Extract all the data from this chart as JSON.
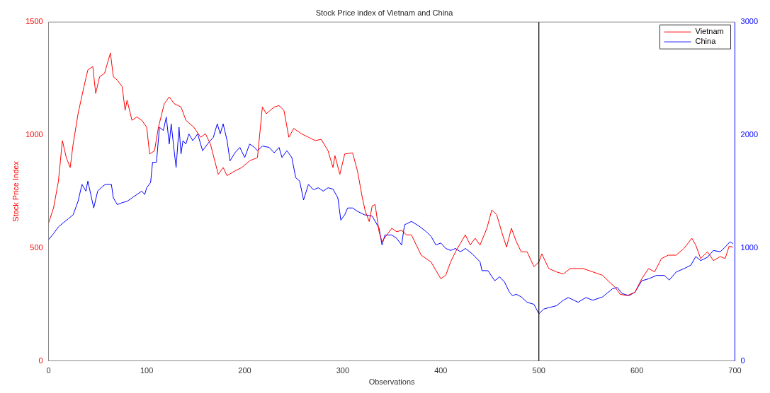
{
  "chart_data": {
    "type": "line",
    "title": "Stock Price index of Vietnam and China",
    "xlabel": "Observations",
    "ylabel": "Stock Price Index",
    "xlim": [
      0,
      700
    ],
    "xticks": [
      0,
      100,
      200,
      300,
      400,
      500,
      600,
      700
    ],
    "ylim": [
      0,
      1500
    ],
    "yticks": [
      0,
      500,
      1000,
      1500
    ],
    "y2lim": [
      0,
      3000
    ],
    "y2ticks": [
      0,
      1000,
      2000,
      3000
    ],
    "grid": false,
    "legend": "top right",
    "marker": "none",
    "line_style": "solid",
    "ref_lines": [
      {
        "axis": "x",
        "value": 500,
        "color": "#000000"
      }
    ],
    "series": [
      {
        "name": "Vietnam",
        "color": "#ff0000",
        "x": [
          0,
          5,
          10,
          14,
          18,
          22,
          25,
          30,
          33,
          36,
          40,
          45,
          48,
          52,
          57,
          63,
          66,
          70,
          75,
          78,
          80,
          85,
          90,
          95,
          100,
          103,
          108,
          112,
          118,
          123,
          128,
          135,
          140,
          148,
          155,
          160,
          165,
          173,
          178,
          182,
          190,
          197,
          205,
          213,
          218,
          222,
          230,
          235,
          240,
          245,
          250,
          258,
          265,
          272,
          278,
          285,
          290,
          292,
          297,
          302,
          310,
          315,
          320,
          323,
          327,
          330,
          333,
          337,
          340,
          345,
          350,
          355,
          360,
          365,
          370,
          380,
          390,
          400,
          405,
          410,
          415,
          425,
          430,
          435,
          440,
          447,
          452,
          457,
          462,
          467,
          472,
          477,
          482,
          488,
          495,
          500,
          503,
          510,
          518,
          525,
          532,
          545,
          555,
          565,
          572,
          578,
          583,
          590,
          598,
          605,
          612,
          618,
          625,
          632,
          640,
          648,
          656,
          660,
          665,
          672,
          678,
          685,
          690,
          694,
          698
        ],
        "values": [
          611,
          677,
          796,
          975,
          900,
          856,
          960,
          1094,
          1154,
          1214,
          1288,
          1303,
          1184,
          1258,
          1273,
          1363,
          1258,
          1243,
          1214,
          1109,
          1154,
          1065,
          1080,
          1065,
          1035,
          916,
          930,
          1035,
          1139,
          1169,
          1139,
          1124,
          1065,
          1035,
          990,
          1005,
          960,
          826,
          856,
          820,
          841,
          856,
          886,
          900,
          1124,
          1094,
          1124,
          1130,
          1109,
          990,
          1029,
          1005,
          990,
          975,
          981,
          930,
          856,
          909,
          826,
          916,
          921,
          841,
          721,
          662,
          617,
          686,
          692,
          572,
          528,
          558,
          587,
          572,
          578,
          558,
          558,
          468,
          438,
          364,
          379,
          438,
          483,
          558,
          513,
          543,
          513,
          587,
          668,
          647,
          572,
          504,
          587,
          528,
          483,
          483,
          417,
          438,
          474,
          409,
          394,
          385,
          409,
          409,
          394,
          379,
          349,
          325,
          295,
          289,
          304,
          364,
          409,
          394,
          453,
          468,
          468,
          498,
          543,
          513,
          453,
          483,
          444,
          462,
          453,
          507,
          504
        ]
      },
      {
        "name": "China",
        "color": "#0000ff",
        "axis": "y2",
        "x": [
          0,
          5,
          10,
          15,
          20,
          25,
          30,
          34,
          38,
          40,
          43,
          46,
          50,
          55,
          58,
          64,
          66,
          70,
          75,
          80,
          85,
          90,
          95,
          98,
          100,
          104,
          106,
          110,
          113,
          117,
          120,
          123,
          125,
          128,
          130,
          133,
          135,
          137,
          140,
          143,
          147,
          152,
          157,
          162,
          168,
          172,
          175,
          178,
          182,
          185,
          190,
          195,
          200,
          205,
          210,
          213,
          218,
          225,
          230,
          235,
          238,
          243,
          248,
          252,
          256,
          260,
          265,
          270,
          275,
          280,
          285,
          290,
          295,
          298,
          302,
          305,
          310,
          315,
          322,
          330,
          337,
          340,
          343,
          350,
          355,
          360,
          363,
          370,
          378,
          385,
          390,
          395,
          400,
          405,
          410,
          415,
          420,
          425,
          432,
          440,
          442,
          448,
          455,
          460,
          465,
          470,
          473,
          477,
          482,
          488,
          495,
          500,
          505,
          510,
          518,
          525,
          530,
          540,
          548,
          555,
          565,
          575,
          580,
          585,
          592,
          598,
          605,
          612,
          620,
          628,
          633,
          640,
          648,
          655,
          660,
          665,
          672,
          678,
          685,
          690,
          695,
          698
        ],
        "values": [
          1074,
          1127,
          1187,
          1223,
          1258,
          1294,
          1413,
          1563,
          1503,
          1592,
          1473,
          1354,
          1503,
          1545,
          1563,
          1563,
          1443,
          1384,
          1401,
          1413,
          1443,
          1473,
          1503,
          1473,
          1533,
          1580,
          1759,
          1759,
          2069,
          2040,
          2159,
          1920,
          2099,
          1861,
          1712,
          2069,
          1831,
          1950,
          1920,
          2010,
          1950,
          2010,
          1861,
          1920,
          1980,
          2099,
          2010,
          2099,
          1950,
          1771,
          1843,
          1890,
          1801,
          1920,
          1890,
          1861,
          1902,
          1890,
          1843,
          1890,
          1801,
          1861,
          1801,
          1622,
          1592,
          1425,
          1563,
          1515,
          1533,
          1503,
          1533,
          1521,
          1443,
          1246,
          1294,
          1354,
          1354,
          1324,
          1294,
          1282,
          1175,
          1026,
          1115,
          1115,
          1085,
          1026,
          1205,
          1235,
          1193,
          1145,
          1103,
          1026,
          1044,
          996,
          978,
          996,
          966,
          996,
          948,
          877,
          799,
          799,
          710,
          745,
          698,
          608,
          578,
          590,
          567,
          519,
          501,
          417,
          459,
          471,
          489,
          537,
          561,
          519,
          561,
          537,
          567,
          638,
          650,
          596,
          578,
          608,
          710,
          727,
          757,
          757,
          716,
          787,
          817,
          847,
          924,
          888,
          918,
          978,
          966,
          1008,
          1055,
          1038
        ]
      }
    ]
  }
}
